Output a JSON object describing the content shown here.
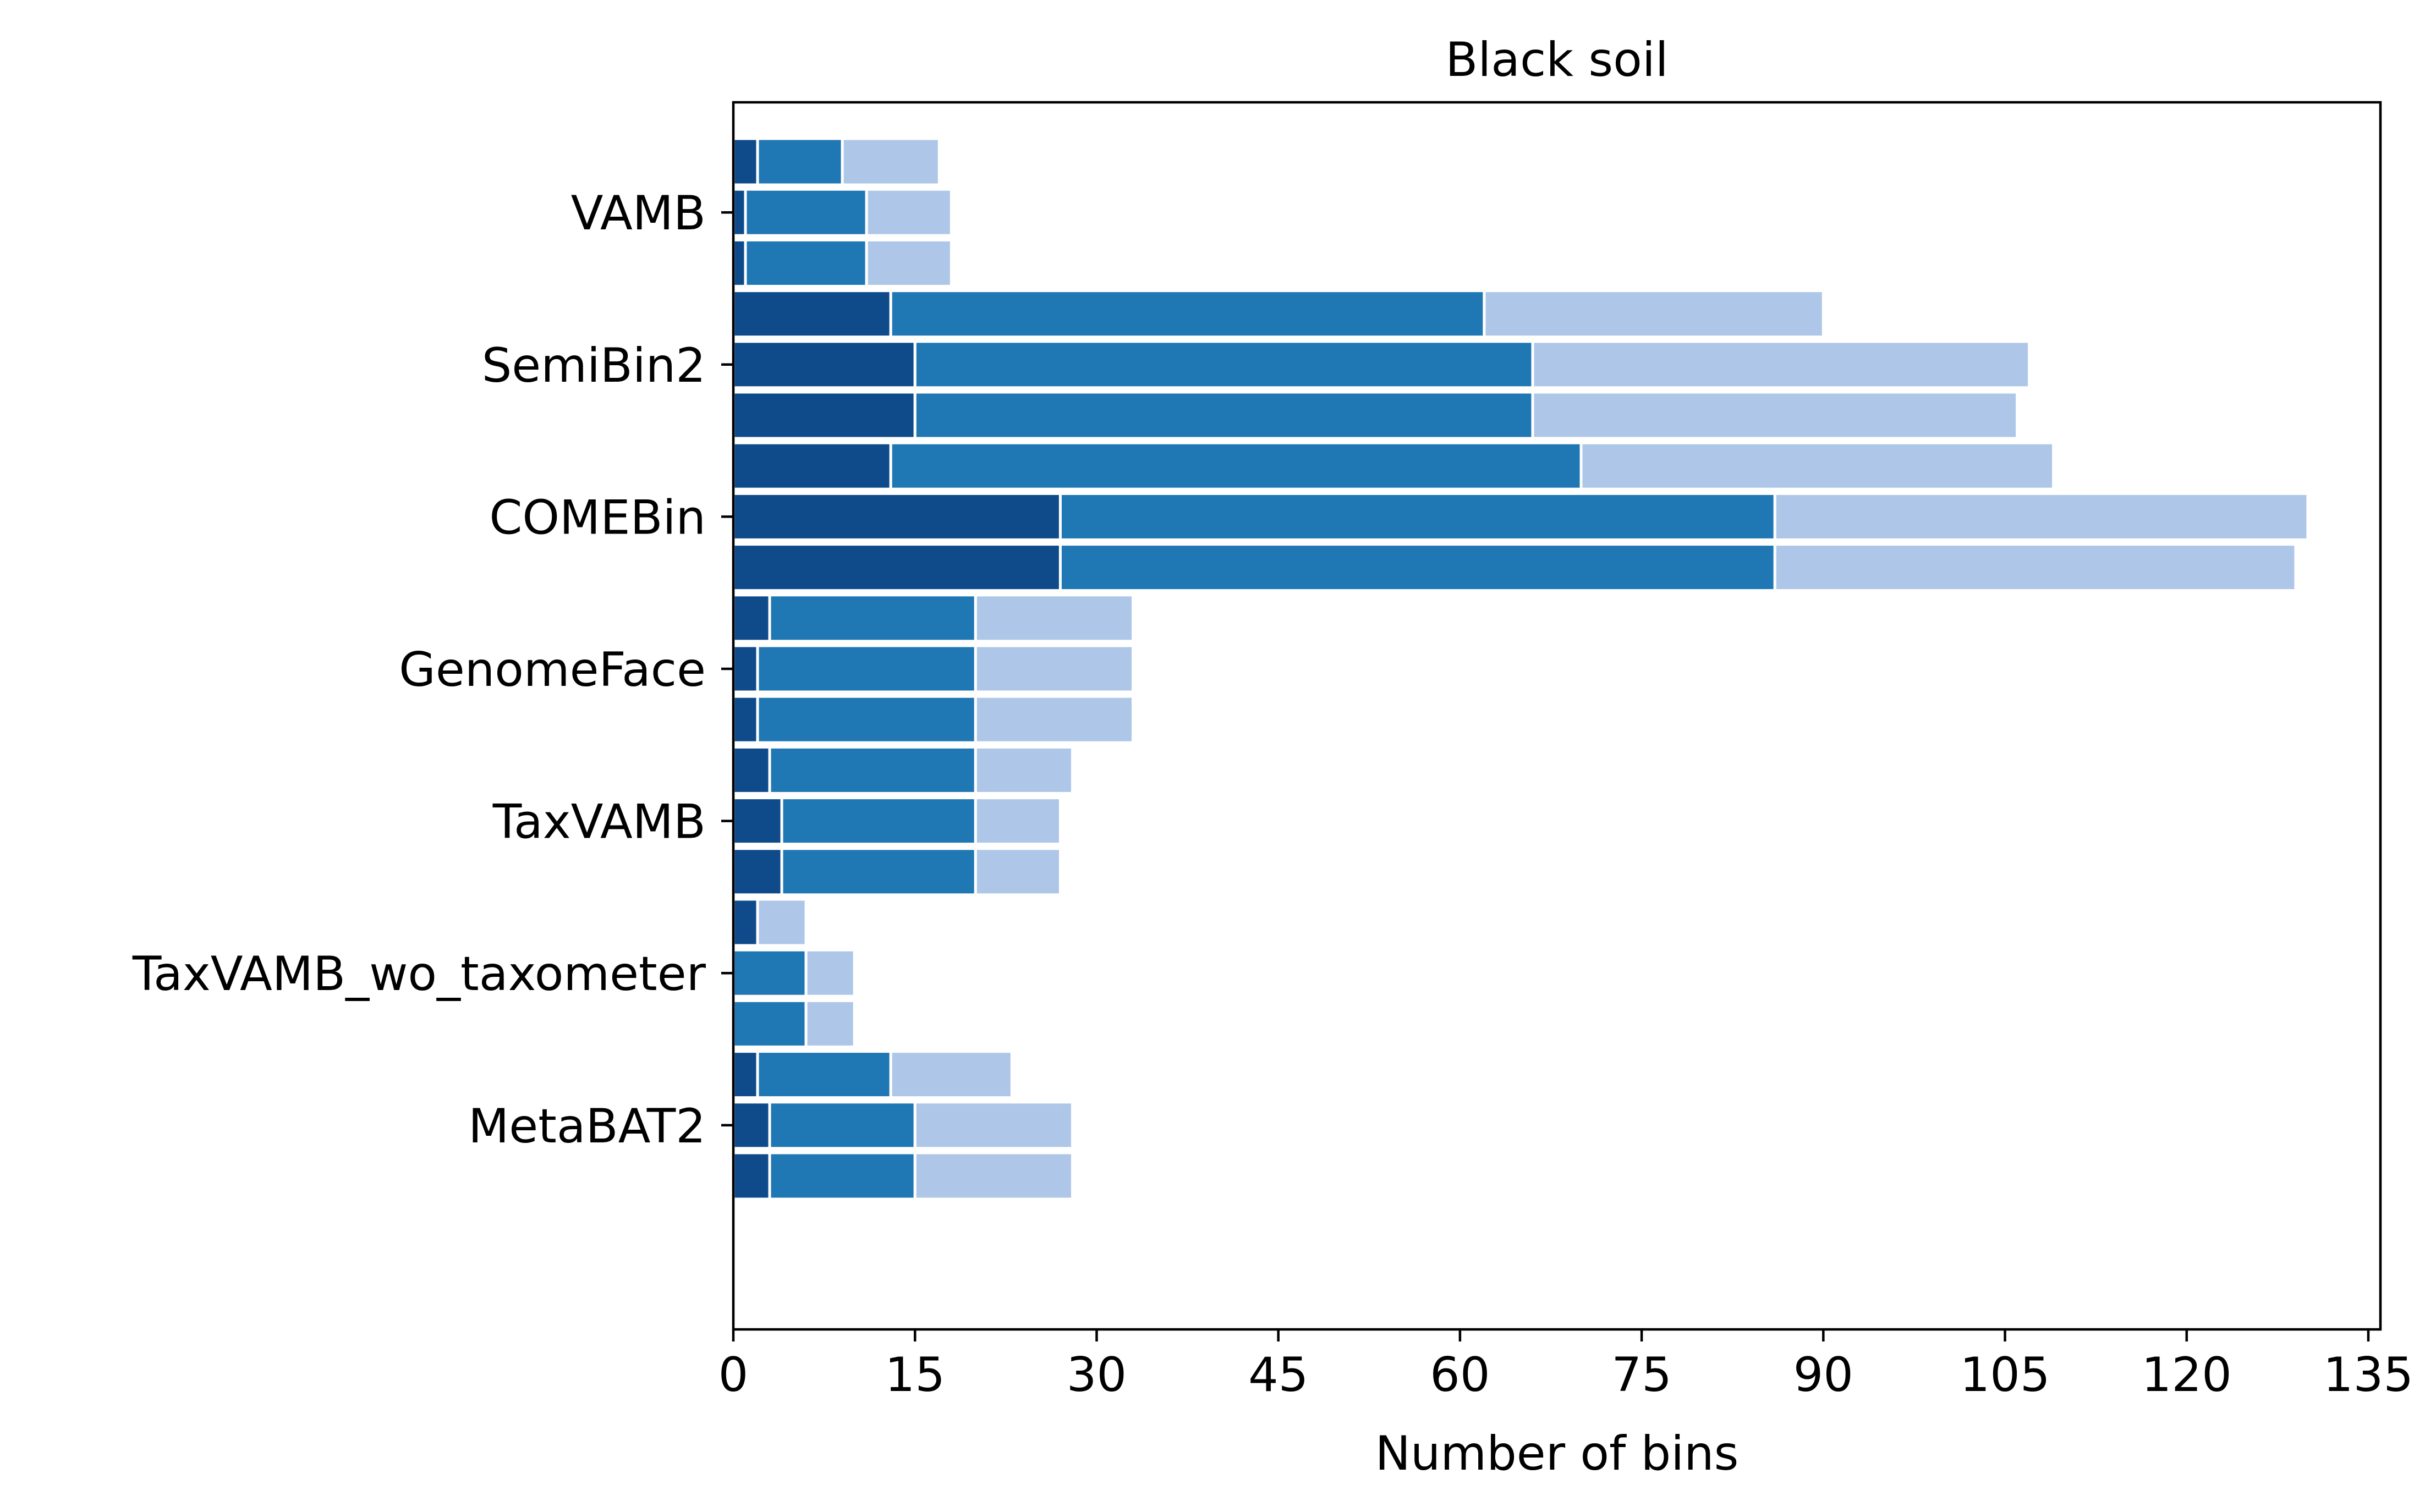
{
  "chart_data": {
    "type": "bar",
    "orientation": "horizontal",
    "stacked": true,
    "title": "Black soil",
    "xlabel": "Number of bins",
    "ylabel": "",
    "xlim": [
      0,
      136
    ],
    "xticks": [
      0,
      15,
      30,
      45,
      60,
      75,
      90,
      105,
      120,
      135
    ],
    "xtick_labels": [
      "0",
      "15",
      "30",
      "45",
      "60",
      "75",
      "90",
      "105",
      "120",
      "135"
    ],
    "grid": false,
    "legend": null,
    "bars_per_category": 3,
    "categories": [
      "VAMB",
      "SemiBin2",
      "COMEBin",
      "GenomeFace",
      "TaxVAMB",
      "TaxVAMB_wo_taxometer",
      "MetaBAT2"
    ],
    "segment_colors": [
      "#0f4b8a",
      "#1f77b4",
      "#aec7e8"
    ],
    "bar_edge_color": "#ffffff",
    "data": [
      [
        [
          2,
          9,
          17
        ],
        [
          1,
          11,
          18
        ],
        [
          1,
          11,
          18
        ]
      ],
      [
        [
          13,
          62,
          90
        ],
        [
          15,
          66,
          107
        ],
        [
          15,
          66,
          106
        ]
      ],
      [
        [
          13,
          70,
          109
        ],
        [
          27,
          86,
          130
        ],
        [
          27,
          86,
          129
        ]
      ],
      [
        [
          3,
          20,
          33
        ],
        [
          2,
          20,
          33
        ],
        [
          2,
          20,
          33
        ]
      ],
      [
        [
          3,
          20,
          28
        ],
        [
          4,
          20,
          27
        ],
        [
          4,
          20,
          27
        ]
      ],
      [
        [
          2,
          2,
          6
        ],
        [
          0,
          6,
          10
        ],
        [
          0,
          6,
          10
        ]
      ],
      [
        [
          2,
          13,
          23
        ],
        [
          3,
          15,
          28
        ],
        [
          3,
          15,
          28
        ]
      ]
    ]
  }
}
